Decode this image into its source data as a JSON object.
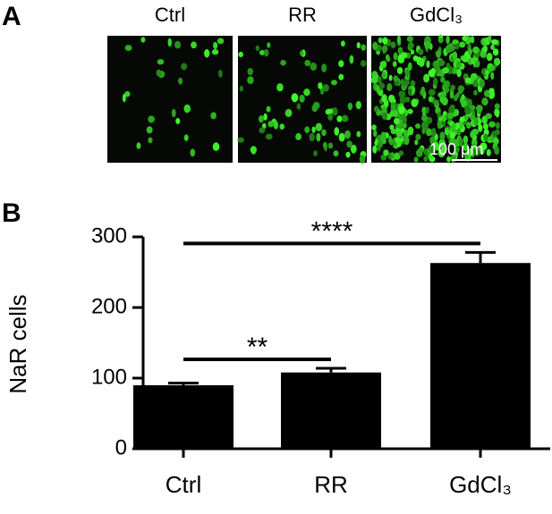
{
  "panel_labels": [
    "A",
    "B"
  ],
  "images": {
    "labels": [
      "Ctrl",
      "RR",
      "GdCl₃"
    ],
    "scale_bar": "100 μm"
  },
  "chart_data": {
    "type": "bar",
    "ylabel": "NaR cells",
    "categories": [
      "Ctrl",
      "RR",
      "GdCl₃"
    ],
    "values": [
      90,
      108,
      263
    ],
    "errors": [
      3,
      6,
      15
    ],
    "color": "#000000",
    "ylim": [
      0,
      300
    ],
    "yticks": [
      0,
      100,
      200,
      300
    ],
    "annotations": [
      "**",
      "****"
    ]
  }
}
